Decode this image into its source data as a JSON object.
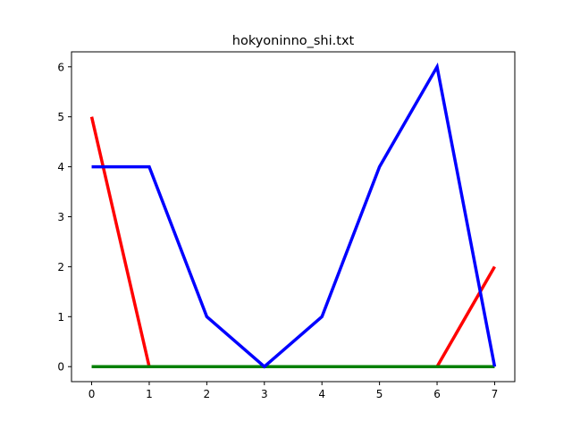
{
  "chart_data": {
    "type": "line",
    "title": "hokyoninno_shi.txt",
    "xlabel": "",
    "ylabel": "",
    "x": [
      0,
      1,
      2,
      3,
      4,
      5,
      6,
      7
    ],
    "xlim": [
      -0.35,
      7.35
    ],
    "ylim": [
      -0.3,
      6.3
    ],
    "xticks": [
      0,
      1,
      2,
      3,
      4,
      5,
      6,
      7
    ],
    "yticks": [
      0,
      1,
      2,
      3,
      4,
      5,
      6
    ],
    "grid": false,
    "legend": "none",
    "series": [
      {
        "color": "#ff0000",
        "values": [
          5,
          0,
          0,
          0,
          0,
          0,
          0,
          2
        ]
      },
      {
        "color": "#008000",
        "values": [
          0,
          0,
          0,
          0,
          0,
          0,
          0,
          0
        ]
      },
      {
        "color": "#0000ff",
        "values": [
          4,
          4,
          1,
          0,
          1,
          4,
          6,
          0
        ]
      }
    ]
  }
}
